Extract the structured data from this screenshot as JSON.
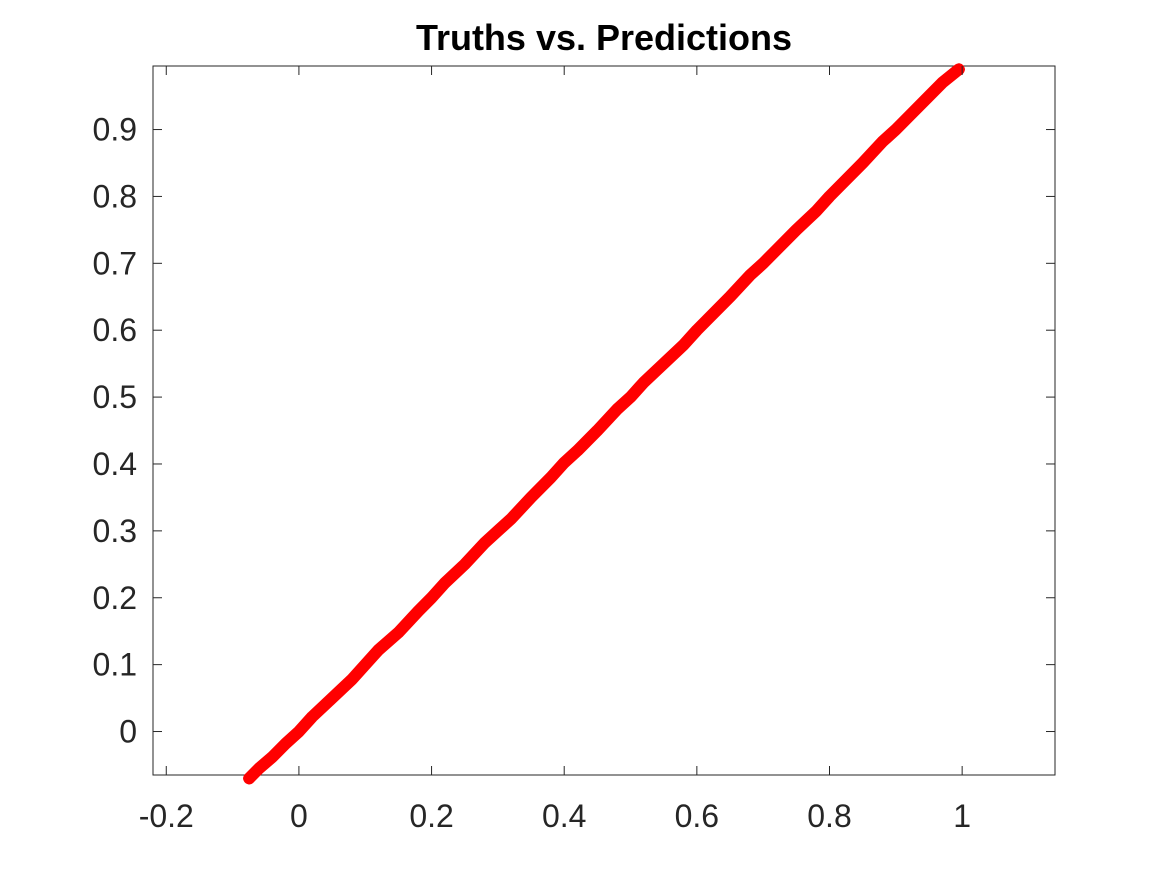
{
  "chart_data": {
    "type": "scatter",
    "title": "Truths vs. Predictions",
    "xlabel": "",
    "ylabel": "",
    "xlim": [
      -0.22,
      1.14
    ],
    "ylim": [
      -0.065,
      0.995
    ],
    "grid": false,
    "marker": "+",
    "x_ticks": [
      -0.2,
      0,
      0.2,
      0.4,
      0.6,
      0.8,
      1
    ],
    "x_tick_labels": [
      "-0.2",
      "0",
      "0.2",
      "0.4",
      "0.6",
      "0.8",
      "1"
    ],
    "y_ticks": [
      0,
      0.1,
      0.2,
      0.3,
      0.4,
      0.5,
      0.6,
      0.7,
      0.8,
      0.9
    ],
    "y_tick_labels": [
      "0",
      "0.1",
      "0.2",
      "0.3",
      "0.4",
      "0.5",
      "0.6",
      "0.7",
      "0.8",
      "0.9"
    ],
    "series": [
      {
        "color": "#ff0000",
        "x": [
          -0.075,
          -0.06,
          -0.04,
          -0.02,
          0.0,
          0.02,
          0.05,
          0.08,
          0.1,
          0.12,
          0.15,
          0.18,
          0.2,
          0.22,
          0.25,
          0.28,
          0.3,
          0.32,
          0.35,
          0.38,
          0.4,
          0.42,
          0.45,
          0.48,
          0.5,
          0.52,
          0.55,
          0.58,
          0.6,
          0.62,
          0.65,
          0.68,
          0.7,
          0.72,
          0.75,
          0.78,
          0.8,
          0.82,
          0.85,
          0.88,
          0.9,
          0.92,
          0.95,
          0.97,
          0.995
        ],
        "y": [
          -0.07,
          -0.055,
          -0.038,
          -0.018,
          0.0,
          0.022,
          0.05,
          0.078,
          0.1,
          0.122,
          0.148,
          0.18,
          0.2,
          0.222,
          0.25,
          0.282,
          0.3,
          0.318,
          0.35,
          0.38,
          0.402,
          0.42,
          0.45,
          0.482,
          0.5,
          0.522,
          0.55,
          0.578,
          0.6,
          0.62,
          0.65,
          0.682,
          0.7,
          0.72,
          0.75,
          0.778,
          0.8,
          0.82,
          0.85,
          0.882,
          0.9,
          0.92,
          0.95,
          0.97,
          0.99
        ]
      }
    ]
  }
}
